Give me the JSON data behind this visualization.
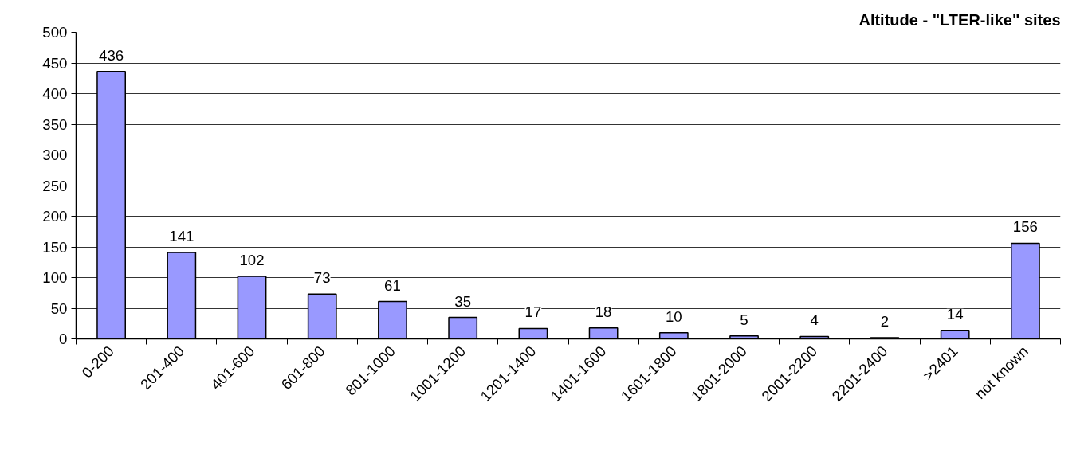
{
  "chart_data": {
    "type": "bar",
    "title": "Altitude - \"LTER-like\" sites",
    "categories": [
      "0-200",
      "201-400",
      "401-600",
      "601-800",
      "801-1000",
      "1001-1200",
      "1201-1400",
      "1401-1600",
      "1601-1800",
      "1801-2000",
      "2001-2200",
      "2201-2400",
      ">2401",
      "not known"
    ],
    "values": [
      436,
      141,
      102,
      73,
      61,
      35,
      17,
      18,
      10,
      5,
      4,
      2,
      14,
      156
    ],
    "color": "#9999ff",
    "ylim": [
      0,
      500
    ],
    "yticks": [
      0,
      50,
      100,
      150,
      200,
      250,
      300,
      350,
      400,
      450,
      500
    ],
    "grid": "y",
    "data_labels": true
  }
}
